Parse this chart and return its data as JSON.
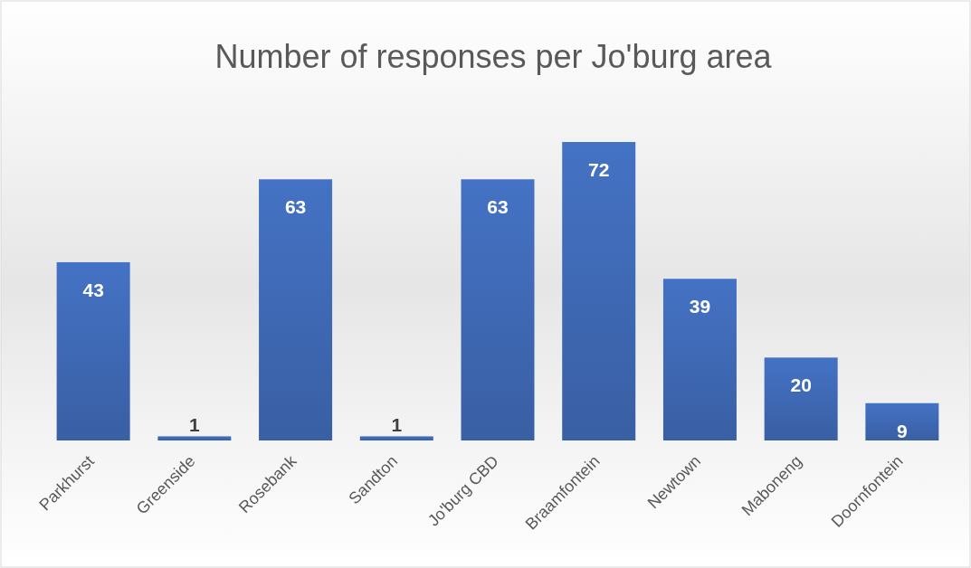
{
  "chart_data": {
    "type": "bar",
    "title": "Number of responses per Jo'burg area",
    "categories": [
      "Parkhurst",
      "Greenside",
      "Rosebank",
      "Sandton",
      "Jo'burg CBD",
      "Braamfontein",
      "Newtown",
      "Maboneng",
      "Doornfontein"
    ],
    "values": [
      43,
      1,
      63,
      1,
      63,
      72,
      39,
      20,
      9
    ],
    "color": "#4472c4",
    "data_labels": true
  }
}
